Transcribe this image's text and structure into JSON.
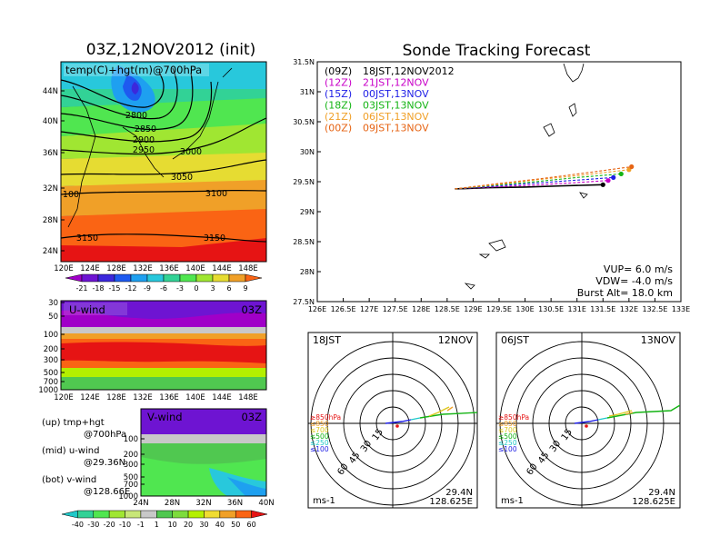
{
  "left_title": "03Z,12NOV2012 (init)",
  "right_title": "Sonde Tracking Forecast",
  "map_label": "temp(C)+hgt(m)@700hPa",
  "contours": [
    "2800",
    "2850",
    "2900",
    "2950",
    "3000",
    "3050",
    "3100",
    "100",
    "3150",
    "3150"
  ],
  "map_lat_ticks": [
    "44N",
    "40N",
    "36N",
    "32N",
    "28N",
    "24N"
  ],
  "lon_ticks_left": [
    "120E",
    "124E",
    "128E",
    "132E",
    "136E",
    "140E",
    "144E",
    "148E"
  ],
  "temp_colorbar": [
    "-21",
    "-18",
    "-15",
    "-12",
    "-9",
    "-6",
    "-3",
    "0",
    "3",
    "6",
    "9"
  ],
  "temp_colors": [
    "#a000c8",
    "#6e14d2",
    "#3c28dc",
    "#1e5af0",
    "#1ea0f0",
    "#28c8dc",
    "#32d296",
    "#50e650",
    "#a0e632",
    "#e6dc32",
    "#f0a028",
    "#fa6414"
  ],
  "uwind": {
    "label": "U-wind",
    "time": "03Z",
    "p_ticks": [
      "30",
      "50",
      "100",
      "200",
      "300",
      "500",
      "700",
      "1000"
    ]
  },
  "vwind": {
    "label": "V-wind",
    "time": "03Z",
    "p_ticks": [
      "100",
      "200",
      "300",
      "500",
      "700",
      "1000"
    ],
    "lat_ticks": [
      "24N",
      "28N",
      "32N",
      "36N",
      "40N"
    ]
  },
  "wind_colorbar": [
    "-40",
    "-30",
    "-20",
    "-10",
    "-1",
    "1",
    "10",
    "20",
    "30",
    "40",
    "50",
    "60"
  ],
  "wind_colors": [
    "#1ec8c8",
    "#32d296",
    "#50e650",
    "#a0e632",
    "#c8e678",
    "#c8c8c8",
    "#50c850",
    "#7ddc3c",
    "#b4f000",
    "#f0dc32",
    "#f0a028",
    "#fa6414",
    "#e61414"
  ],
  "notes": [
    {
      "line1": "(up) tmp+hgt",
      "line2": "@700hPa"
    },
    {
      "line1": "(mid) u-wind",
      "line2": "@29.36N"
    },
    {
      "line1": "(bot) v-wind",
      "line2": "@128.66E"
    }
  ],
  "track_legend": [
    {
      "code": "(09Z)",
      "text": "18JST,12NOV2012",
      "color": "#000000"
    },
    {
      "code": "(12Z)",
      "text": "21JST,12NOV",
      "color": "#c800c8"
    },
    {
      "code": "(15Z)",
      "text": "00JST,13NOV",
      "color": "#1e1ee6"
    },
    {
      "code": "(18Z)",
      "text": "03JST,13NOV",
      "color": "#14b414"
    },
    {
      "code": "(21Z)",
      "text": "06JST,13NOV",
      "color": "#f0a028"
    },
    {
      "code": "(00Z)",
      "text": "09JST,13NOV",
      "color": "#e66414"
    }
  ],
  "track_params": {
    "vup": "VUP= 6.0 m/s",
    "vdw": "VDW= -4.0 m/s",
    "burst": "Burst Alt= 18.0 km"
  },
  "track_lat_ticks": [
    "31.5N",
    "31N",
    "30.5N",
    "30N",
    "29.5N",
    "29N",
    "28.5N",
    "28N",
    "27.5N"
  ],
  "track_lon_ticks": [
    "126E",
    "126.5E",
    "127E",
    "127.5E",
    "128E",
    "128.5E",
    "129E",
    "129.5E",
    "130E",
    "130.5E",
    "131E",
    "131.5E",
    "132E",
    "132.5E",
    "133E"
  ],
  "hodo_left": {
    "time": "18JST",
    "date": "12NOV",
    "lat": "29.4N",
    "lon": "128.625E",
    "unit": "ms-1"
  },
  "hodo_right": {
    "time": "06JST",
    "date": "13NOV",
    "lat": "29.4N",
    "lon": "128.625E",
    "unit": "ms-1"
  },
  "ring_labels": [
    "15",
    "30",
    "45",
    "60"
  ],
  "hodo_levels": [
    {
      "text": "≥850hPa",
      "color": "#e61414"
    },
    {
      "text": "≤850",
      "color": "#f0a028"
    },
    {
      "text": "≤700",
      "color": "#dcc81e"
    },
    {
      "text": "≤500",
      "color": "#14b414"
    },
    {
      "text": "≤250",
      "color": "#1ec8c8"
    },
    {
      "text": "≤100",
      "color": "#1e1ee6"
    }
  ],
  "chart_data": {
    "type": "line",
    "title": "Sonde Tracking Forecast",
    "xlim": [
      126,
      133
    ],
    "ylim": [
      27.5,
      31.5
    ],
    "series": [
      {
        "name": "(09Z)",
        "color": "#000000",
        "x": [
          128.65,
          129.3,
          130.0,
          130.7,
          131.5
        ],
        "y": [
          29.38,
          29.4,
          29.41,
          29.43,
          29.45
        ]
      },
      {
        "name": "(12Z)",
        "color": "#c800c8",
        "x": [
          128.65,
          129.3,
          130.1,
          130.9,
          131.6
        ],
        "y": [
          29.38,
          29.41,
          29.44,
          29.48,
          29.52
        ]
      },
      {
        "name": "(15Z)",
        "color": "#1e1ee6",
        "x": [
          128.65,
          129.3,
          130.1,
          130.9,
          131.7
        ],
        "y": [
          29.38,
          29.42,
          29.47,
          29.52,
          29.57
        ]
      },
      {
        "name": "(18Z)",
        "color": "#14b414",
        "x": [
          128.65,
          129.4,
          130.2,
          131.0,
          131.85
        ],
        "y": [
          29.38,
          29.44,
          29.5,
          29.57,
          29.63
        ]
      },
      {
        "name": "(21Z)",
        "color": "#f0a028",
        "x": [
          128.65,
          129.4,
          130.2,
          131.1,
          132.0
        ],
        "y": [
          29.38,
          29.45,
          29.53,
          29.61,
          29.7
        ]
      },
      {
        "name": "(00Z)",
        "color": "#e66414",
        "x": [
          128.65,
          129.4,
          130.3,
          131.2,
          132.05
        ],
        "y": [
          29.38,
          29.46,
          29.55,
          29.65,
          29.75
        ]
      }
    ]
  }
}
